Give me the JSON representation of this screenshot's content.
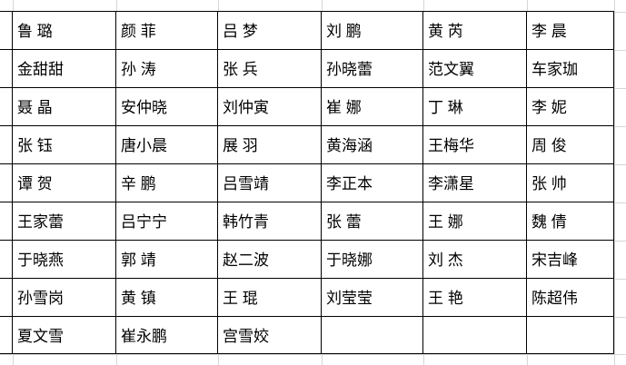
{
  "table": {
    "rows": [
      [
        "鲁 璐",
        "颜 菲",
        "吕 梦",
        "刘 鹏",
        "黄 芮",
        "李 晨"
      ],
      [
        "金甜甜",
        "孙 涛",
        "张 兵",
        "孙晓蕾",
        "范文翼",
        "车家珈"
      ],
      [
        "聂 晶",
        "安仲晓",
        "刘仲寅",
        "崔 娜",
        "丁 琳",
        "李 妮"
      ],
      [
        "张 钰",
        "唐小晨",
        "展 羽",
        "黄海涵",
        "王梅华",
        "周 俊"
      ],
      [
        "谭 贺",
        "辛 鹏",
        "吕雪靖",
        "李正本",
        "李潇星",
        "张 帅"
      ],
      [
        "王家蕾",
        "吕宁宁",
        "韩竹青",
        "张 蕾",
        "王 娜",
        "魏 倩"
      ],
      [
        "于晓燕",
        "郭 靖",
        "赵二波",
        "于晓娜",
        "刘 杰",
        "宋吉峰"
      ],
      [
        "孙雪岗",
        "黄 镇",
        "王 琨",
        "刘莹莹",
        "王 艳",
        "陈超伟"
      ],
      [
        "夏文雪",
        "崔永鹏",
        "宫雪姣",
        "",
        "",
        ""
      ]
    ]
  },
  "colors": {
    "table_border": "#000000",
    "gridline": "#d6d6d6",
    "background": "#ffffff",
    "text": "#000000"
  }
}
